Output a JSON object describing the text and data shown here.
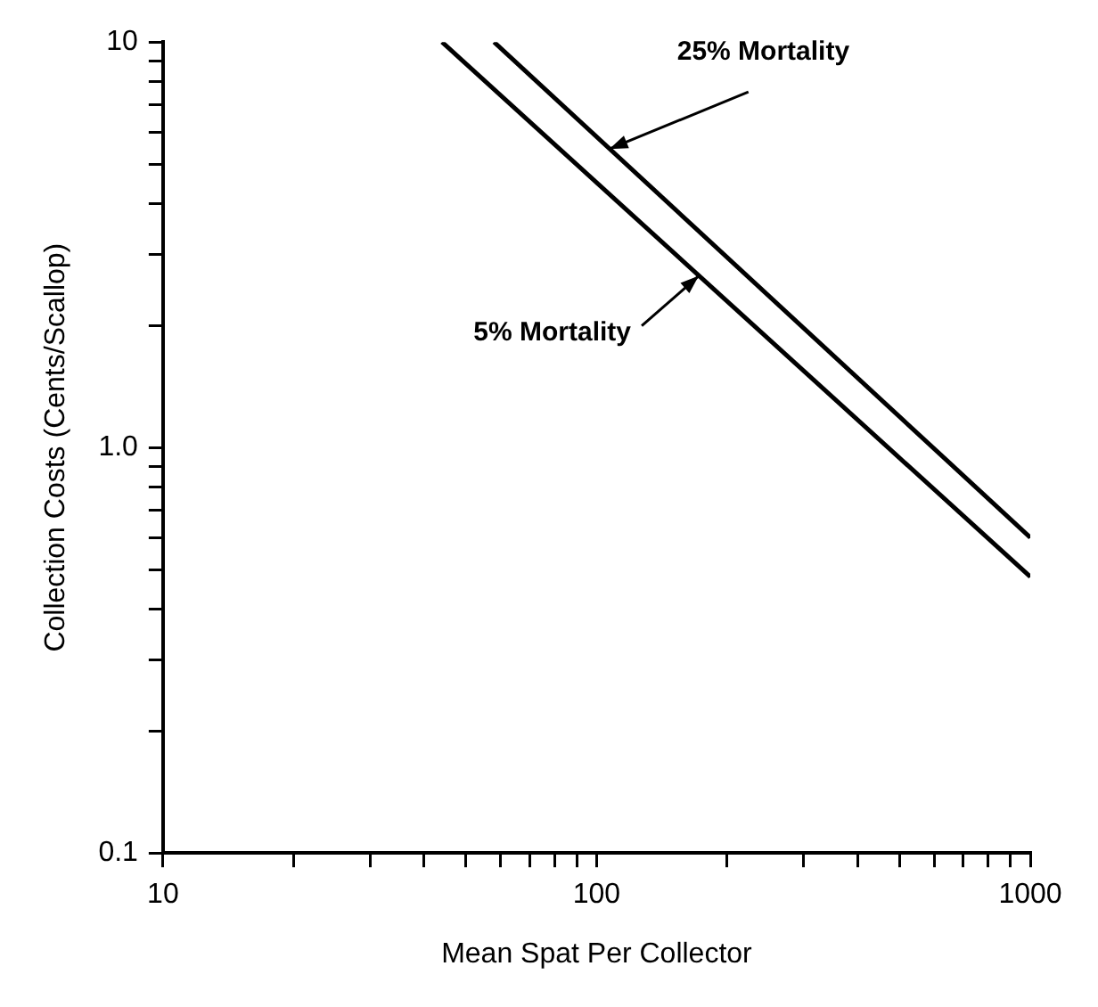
{
  "chart_data": {
    "type": "line",
    "xlabel": "Mean Spat Per Collector",
    "ylabel": "Collection Costs (Cents/Scallop)",
    "log": "xy",
    "grid": false,
    "legend": false,
    "marker": "none",
    "line_style": "solid",
    "xlim": [
      10,
      1000
    ],
    "ylim": [
      0.1,
      10
    ],
    "xticks": [
      10,
      {
        "value": 20,
        "label": null
      },
      {
        "value": 30,
        "label": null
      },
      {
        "value": 40,
        "label": null
      },
      {
        "value": 50,
        "label": null
      },
      {
        "value": 60,
        "label": null
      },
      {
        "value": 70,
        "label": null
      },
      {
        "value": 80,
        "label": null
      },
      {
        "value": 90,
        "label": null
      },
      100,
      {
        "value": 200,
        "label": null
      },
      {
        "value": 300,
        "label": null
      },
      {
        "value": 400,
        "label": null
      },
      {
        "value": 500,
        "label": null
      },
      {
        "value": 600,
        "label": null
      },
      {
        "value": 700,
        "label": null
      },
      {
        "value": 800,
        "label": null
      },
      {
        "value": 900,
        "label": null
      },
      1000
    ],
    "yticks": [
      {
        "value": 0.1,
        "label": "0.1"
      },
      {
        "value": 0.2,
        "label": null
      },
      {
        "value": 0.3,
        "label": null
      },
      {
        "value": 0.4,
        "label": null
      },
      {
        "value": 0.5,
        "label": null
      },
      {
        "value": 0.6,
        "label": null
      },
      {
        "value": 0.7,
        "label": null
      },
      {
        "value": 0.8,
        "label": null
      },
      {
        "value": 0.9,
        "label": null
      },
      {
        "value": 1,
        "label": "1.0"
      },
      {
        "value": 2,
        "label": null
      },
      {
        "value": 3,
        "label": null
      },
      {
        "value": 4,
        "label": null
      },
      {
        "value": 5,
        "label": null
      },
      {
        "value": 6,
        "label": null
      },
      {
        "value": 7,
        "label": null
      },
      {
        "value": 8,
        "label": null
      },
      {
        "value": 9,
        "label": null
      },
      10
    ],
    "series": [
      {
        "color": "#000000",
        "x": [
          58,
          1000
        ],
        "values": [
          10,
          0.6
        ]
      },
      {
        "color": "#000000",
        "x": [
          44,
          1000
        ],
        "values": [
          10,
          0.48
        ]
      }
    ],
    "annotations": [
      {
        "text": "25% Mortality",
        "x": 107,
        "y": 5.45
      },
      {
        "text": "5% Mortality",
        "x": 172,
        "y": 2.65
      }
    ]
  }
}
